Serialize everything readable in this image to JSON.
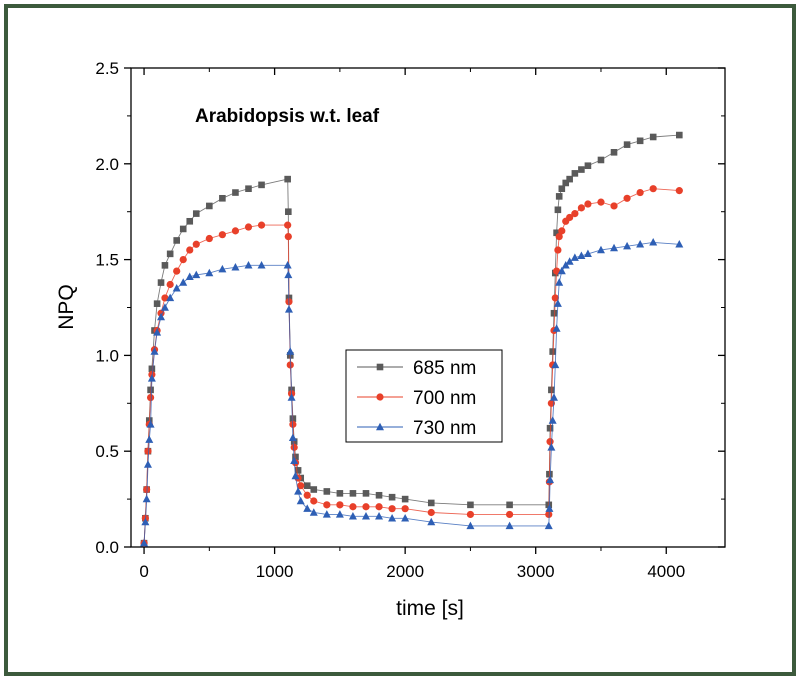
{
  "chart_data": {
    "type": "line",
    "title": "Arabidopsis w.t. leaf",
    "xlabel": "time [s]",
    "ylabel": "NPQ",
    "xlim": [
      -100,
      4450
    ],
    "ylim": [
      0,
      2.5
    ],
    "xticks": [
      0,
      1000,
      2000,
      3000,
      4000
    ],
    "xtick_labels": [
      "0",
      "1000",
      "2000",
      "3000",
      "4000"
    ],
    "yticks": [
      0,
      0.5,
      1.0,
      1.5,
      2.0,
      2.5
    ],
    "ytick_labels": [
      "0.0",
      "0.5",
      "1.0",
      "1.5",
      "2.0",
      "2.5"
    ],
    "grid": false,
    "legend_position": "center",
    "series": [
      {
        "name": "685 nm",
        "color": "#5a5a5a",
        "marker": "square",
        "x": [
          0,
          10,
          20,
          30,
          40,
          50,
          60,
          80,
          100,
          130,
          160,
          200,
          250,
          300,
          350,
          400,
          500,
          600,
          700,
          800,
          900,
          1100,
          1105,
          1110,
          1120,
          1130,
          1140,
          1150,
          1160,
          1180,
          1200,
          1250,
          1300,
          1400,
          1500,
          1600,
          1700,
          1800,
          1900,
          2000,
          2200,
          2500,
          2800,
          3100,
          3105,
          3110,
          3120,
          3130,
          3140,
          3150,
          3160,
          3170,
          3180,
          3200,
          3230,
          3260,
          3300,
          3350,
          3400,
          3500,
          3600,
          3700,
          3800,
          3900,
          4100
        ],
        "y": [
          0.02,
          0.15,
          0.3,
          0.5,
          0.66,
          0.82,
          0.93,
          1.13,
          1.27,
          1.38,
          1.47,
          1.53,
          1.6,
          1.66,
          1.7,
          1.74,
          1.78,
          1.82,
          1.85,
          1.87,
          1.89,
          1.92,
          1.75,
          1.3,
          1.0,
          0.82,
          0.67,
          0.55,
          0.47,
          0.4,
          0.36,
          0.32,
          0.3,
          0.29,
          0.28,
          0.28,
          0.28,
          0.27,
          0.26,
          0.25,
          0.23,
          0.22,
          0.22,
          0.22,
          0.38,
          0.62,
          0.82,
          1.02,
          1.22,
          1.43,
          1.64,
          1.76,
          1.83,
          1.87,
          1.9,
          1.92,
          1.95,
          1.97,
          1.99,
          2.02,
          2.06,
          2.1,
          2.12,
          2.14,
          2.15
        ]
      },
      {
        "name": "700 nm",
        "color": "#e8402a",
        "marker": "circle",
        "x": [
          0,
          10,
          20,
          30,
          40,
          50,
          60,
          80,
          100,
          130,
          160,
          200,
          250,
          300,
          350,
          400,
          500,
          600,
          700,
          800,
          900,
          1100,
          1105,
          1110,
          1120,
          1130,
          1140,
          1150,
          1160,
          1180,
          1200,
          1250,
          1300,
          1400,
          1500,
          1600,
          1700,
          1800,
          1900,
          2000,
          2200,
          2500,
          2800,
          3100,
          3105,
          3110,
          3120,
          3130,
          3140,
          3150,
          3160,
          3170,
          3180,
          3200,
          3230,
          3260,
          3300,
          3350,
          3400,
          3500,
          3600,
          3700,
          3800,
          3900,
          4100
        ],
        "y": [
          0.02,
          0.15,
          0.3,
          0.5,
          0.64,
          0.78,
          0.9,
          1.03,
          1.13,
          1.22,
          1.3,
          1.37,
          1.44,
          1.5,
          1.55,
          1.58,
          1.61,
          1.63,
          1.65,
          1.67,
          1.68,
          1.68,
          1.62,
          1.28,
          0.95,
          0.8,
          0.64,
          0.52,
          0.44,
          0.36,
          0.32,
          0.27,
          0.24,
          0.22,
          0.22,
          0.21,
          0.21,
          0.21,
          0.2,
          0.2,
          0.18,
          0.17,
          0.17,
          0.17,
          0.34,
          0.55,
          0.75,
          0.95,
          1.13,
          1.3,
          1.44,
          1.55,
          1.62,
          1.65,
          1.7,
          1.72,
          1.74,
          1.77,
          1.79,
          1.8,
          1.78,
          1.82,
          1.85,
          1.87,
          1.86
        ]
      },
      {
        "name": "730 nm",
        "color": "#2e5fb5",
        "marker": "triangle",
        "x": [
          0,
          10,
          20,
          30,
          40,
          50,
          60,
          80,
          100,
          130,
          160,
          200,
          250,
          300,
          350,
          400,
          500,
          600,
          700,
          800,
          900,
          1100,
          1105,
          1110,
          1120,
          1130,
          1140,
          1150,
          1160,
          1180,
          1200,
          1250,
          1300,
          1400,
          1500,
          1600,
          1700,
          1800,
          1900,
          2000,
          2200,
          2500,
          2800,
          3100,
          3105,
          3110,
          3120,
          3130,
          3140,
          3150,
          3160,
          3170,
          3180,
          3200,
          3230,
          3260,
          3300,
          3350,
          3400,
          3500,
          3600,
          3700,
          3800,
          3900,
          4100
        ],
        "y": [
          0.02,
          0.13,
          0.25,
          0.43,
          0.56,
          0.64,
          0.88,
          1.02,
          1.12,
          1.2,
          1.25,
          1.3,
          1.35,
          1.38,
          1.41,
          1.42,
          1.43,
          1.45,
          1.46,
          1.47,
          1.47,
          1.47,
          1.42,
          1.24,
          1.02,
          0.78,
          0.57,
          0.45,
          0.37,
          0.29,
          0.24,
          0.2,
          0.18,
          0.17,
          0.17,
          0.16,
          0.16,
          0.16,
          0.15,
          0.15,
          0.13,
          0.11,
          0.11,
          0.11,
          0.2,
          0.35,
          0.52,
          0.66,
          0.78,
          0.95,
          1.14,
          1.27,
          1.38,
          1.44,
          1.47,
          1.49,
          1.51,
          1.52,
          1.53,
          1.55,
          1.56,
          1.57,
          1.58,
          1.59,
          1.58
        ]
      }
    ]
  }
}
